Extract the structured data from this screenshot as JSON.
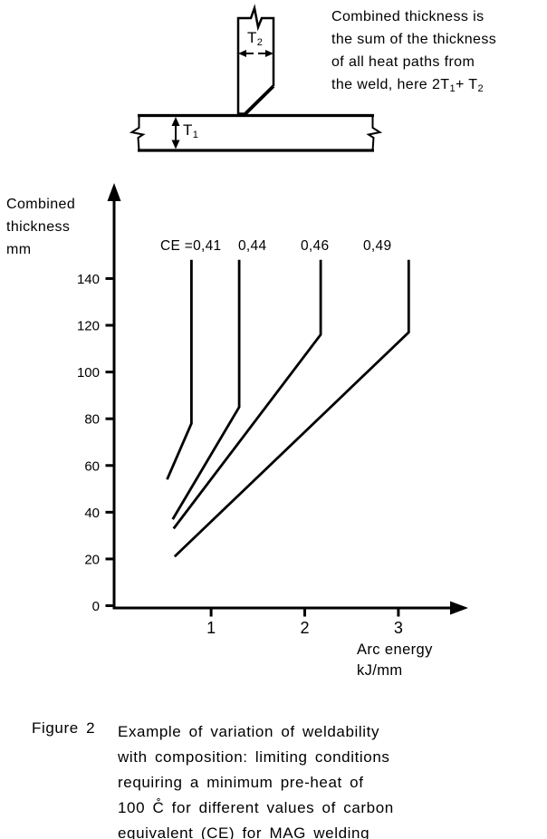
{
  "figure": {
    "sketch": {
      "t2_label": {
        "base": "T",
        "sub": "2"
      },
      "t1_label": {
        "base": "T",
        "sub": "1"
      },
      "note_lines": [
        "Combined thickness is",
        "the sum of the thickness",
        "of all heat paths from"
      ],
      "note_formula_line": {
        "text": "the weld, here 2T",
        "sub1": "1",
        "mid": "+ T",
        "sub2": "2"
      }
    },
    "caption": {
      "tag": "Figure 2",
      "lines": [
        "Example of variation of weldability",
        "with composition: limiting conditions",
        "requiring a minimum pre-heat of",
        "100 C̊ for different values of carbon",
        "equivalent (CE) for MAG welding"
      ]
    }
  },
  "chart_data": {
    "type": "line",
    "title": "",
    "ylabel": "Combined thickness mm",
    "xlabel": "Arc energy kJ/mm",
    "ylabel_lines": [
      "Combined",
      "thickness",
      "mm"
    ],
    "xlabel_lines": [
      "Arc energy",
      "kJ/mm"
    ],
    "xlim": [
      0,
      3.5
    ],
    "ylim": [
      0,
      150
    ],
    "grid": false,
    "x_ticks": [
      "1",
      "2",
      "3"
    ],
    "x_tick_values": [
      1,
      2,
      3
    ],
    "y_ticks": [
      "0",
      "20",
      "40",
      "60",
      "80",
      "100",
      "120",
      "140"
    ],
    "y_tick_values": [
      0,
      20,
      40,
      60,
      80,
      100,
      120,
      140
    ],
    "series_label_prefix": "CE =",
    "series": [
      {
        "label": "0,41",
        "name": "CE = 0,41",
        "points": [
          [
            0.79,
            148
          ],
          [
            0.79,
            78
          ],
          [
            0.53,
            54
          ]
        ]
      },
      {
        "label": "0,44",
        "name": "CE = 0,44",
        "points": [
          [
            1.3,
            148
          ],
          [
            1.3,
            85
          ],
          [
            0.59,
            37
          ]
        ]
      },
      {
        "label": "0,46",
        "name": "CE = 0,46",
        "points": [
          [
            2.17,
            148
          ],
          [
            2.17,
            116
          ],
          [
            0.6,
            33
          ]
        ]
      },
      {
        "label": "0,49",
        "name": "CE = 0,49",
        "points": [
          [
            3.11,
            148
          ],
          [
            3.11,
            117
          ],
          [
            0.61,
            21
          ]
        ]
      }
    ],
    "colors": {
      "ink": "#000000",
      "paper": "#ffffff"
    }
  }
}
